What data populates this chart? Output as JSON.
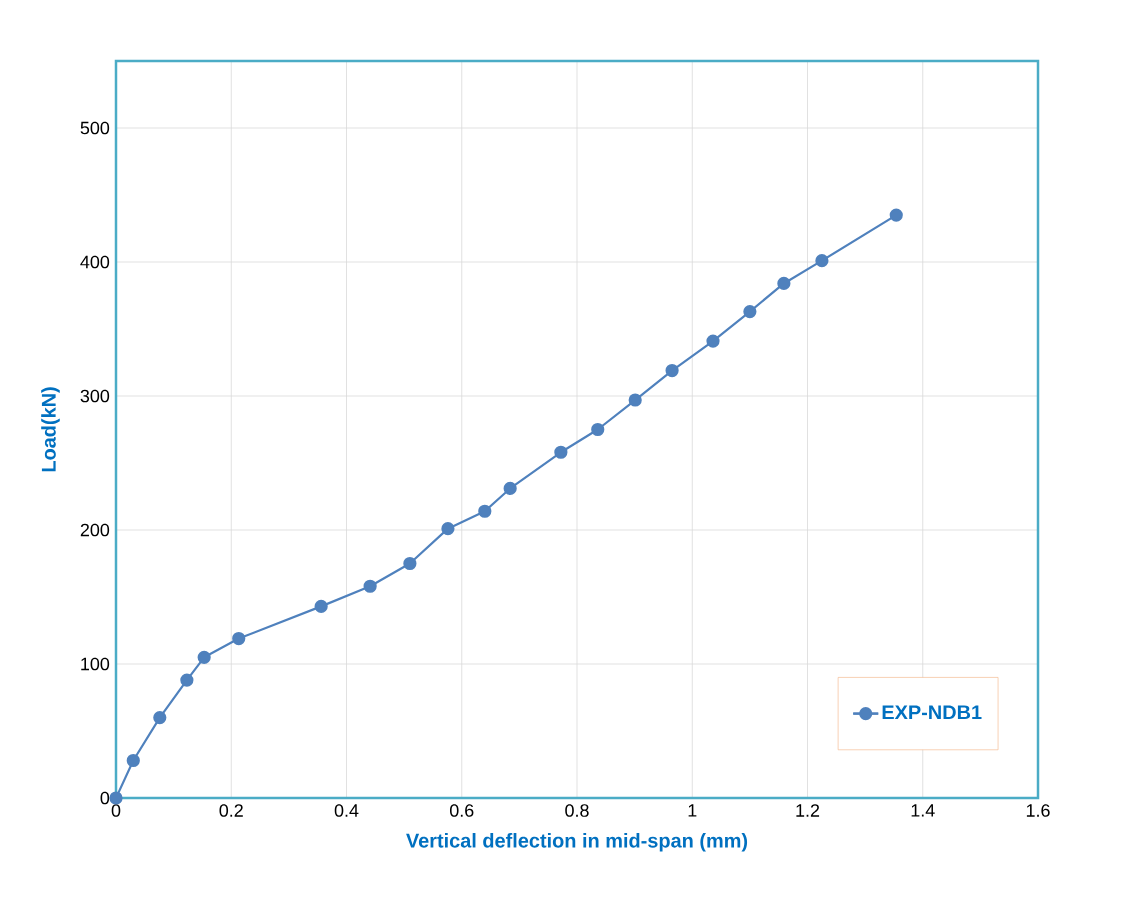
{
  "chart_data": {
    "type": "line",
    "xlabel": "Vertical deflection in mid-span (mm)",
    "ylabel": "Load(kN)",
    "xlim": [
      0,
      1.6
    ],
    "xticks": [
      0,
      0.2,
      0.4,
      0.6,
      0.8,
      1,
      1.2,
      1.4,
      1.6
    ],
    "ylim": [
      0,
      550
    ],
    "yticks": [
      0,
      100,
      200,
      300,
      400,
      500
    ],
    "grid": true,
    "legend": "bottom right",
    "marker": "circle",
    "line_style": "solid",
    "x": [
      0,
      0.03,
      0.076,
      0.123,
      0.153,
      0.213,
      0.356,
      0.441,
      0.51,
      0.576,
      0.64,
      0.684,
      0.772,
      0.836,
      0.901,
      0.965,
      1.036,
      1.1,
      1.159,
      1.225,
      1.354
    ],
    "series": [
      {
        "name": "EXP-NDB1",
        "color": "#4f81bd",
        "values": [
          0,
          28,
          60,
          88,
          105,
          119,
          143,
          158,
          175,
          201,
          214,
          231,
          258,
          275,
          297,
          319,
          341,
          363,
          384,
          401,
          435
        ]
      }
    ]
  }
}
